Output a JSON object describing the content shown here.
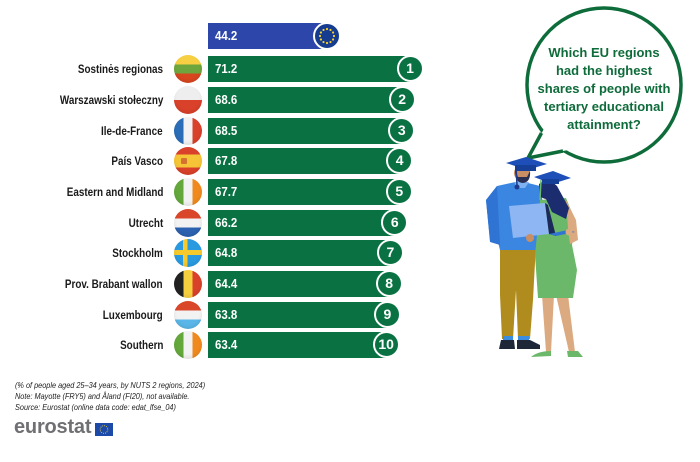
{
  "chart_data": {
    "type": "bar",
    "orientation": "horizontal",
    "title": "Which EU regions had the highest shares of people with tertiary educational attainment?",
    "subtitle": "(% of people aged 25–34 years, by NUTS 2 regions, 2024)",
    "categories": [
      "Sostinės regionas",
      "Warszawski stołeczny",
      "Ile-de-France",
      "País Vasco",
      "Eastern and Midland",
      "Utrecht",
      "Stockholm",
      "Prov. Brabant wallon",
      "Luxembourg",
      "Southern"
    ],
    "values": [
      71.2,
      68.6,
      68.5,
      67.8,
      67.7,
      66.2,
      64.8,
      64.4,
      63.8,
      63.4
    ],
    "ranks": [
      "1",
      "2",
      "3",
      "4",
      "5",
      "6",
      "7",
      "8",
      "9",
      "10"
    ],
    "flags": [
      "lithuania",
      "poland",
      "france",
      "spain",
      "ireland",
      "netherlands",
      "sweden",
      "belgium",
      "luxembourg",
      "ireland"
    ],
    "eu_reference": {
      "label": "EU",
      "value": 44.2,
      "icon": "eu-flag-icon"
    },
    "xlabel": "",
    "ylabel": "",
    "unit": "%",
    "grid": false,
    "legend": null
  },
  "bubble": {
    "lines": [
      "Which EU regions",
      "had the highest",
      "shares of people with",
      "tertiary educational",
      "attainment?"
    ]
  },
  "footer": {
    "subtitle": "(% of people aged 25–34 years, by NUTS 2 regions, 2024)",
    "note": "Note: Mayotte (FRY5) and Åland (FI20), not available.",
    "source": "Source: Eurostat (online data code: edat_lfse_04)"
  },
  "logo": {
    "text": "eurostat",
    "icon": "eu-flag-icon"
  },
  "colors": {
    "region_bar": "#0a7242",
    "eu_bar": "#2c46aa",
    "eu_badge": "#163c8f",
    "bubble_text": "#0e6b3a",
    "logo_text": "#6f7073"
  }
}
